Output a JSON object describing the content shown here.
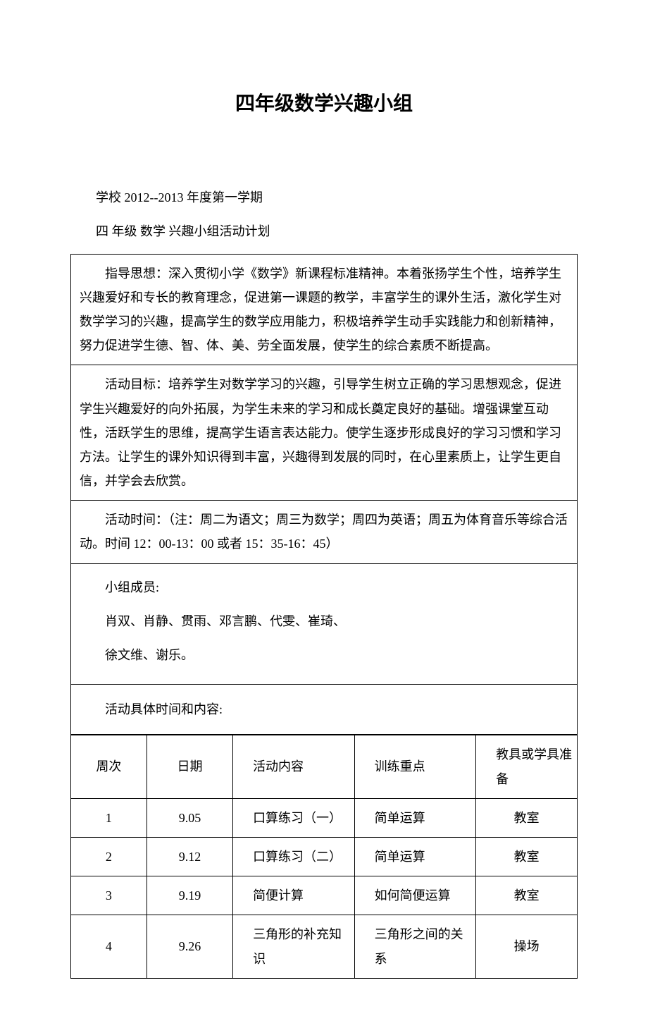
{
  "title": "四年级数学兴趣小组",
  "intro1": "学校 2012--2013 年度第一学期",
  "intro2": "四 年级 数学 兴趣小组活动计划",
  "box1": "指导思想：深入贯彻小学《数学》新课程标准精神。本着张扬学生个性，培养学生兴趣爱好和专长的教育理念，促进第一课题的教学，丰富学生的课外生活，激化学生对数学学习的兴趣，提高学生的数学应用能力，积极培养学生动手实践能力和创新精神，努力促进学生德、智、体、美、劳全面发展，使学生的综合素质不断提高。",
  "box2": "活动目标：培养学生对数学学习的兴趣，引导学生树立正确的学习思想观念，促进学生兴趣爱好的向外拓展，为学生未来的学习和成长奠定良好的基础。增强课堂互动性，活跃学生的思维，提高学生语言表达能力。使学生逐步形成良好的学习习惯和学习方法。让学生的课外知识得到丰富，兴趣得到发展的同时，在心里素质上，让学生更自信，并学会去欣赏。",
  "box3": "活动时间：（注：周二为语文；周三为数学；周四为英语；周五为体育音乐等综合活动。时间 12：00-13：00 或者 15：35-16：45）",
  "members_label": "小组成员:",
  "members_line1": "肖双、肖静、贯雨、邓言鹏、代雯、崔琦、",
  "members_line2": "徐文维、谢乐。",
  "schedule_title": "活动具体时间和内容:",
  "columns": {
    "week": "周次",
    "date": "日期",
    "activity": "活动内容",
    "focus": "训练重点",
    "prep": "教具或学具准备"
  },
  "rows": [
    {
      "week": "1",
      "date": "9.05",
      "activity": "口算练习（一）",
      "focus": "简单运算",
      "prep": "教室"
    },
    {
      "week": "2",
      "date": "9.12",
      "activity": "口算练习（二）",
      "focus": "简单运算",
      "prep": "教室"
    },
    {
      "week": "3",
      "date": "9.19",
      "activity": "简便计算",
      "focus": "如何简便运算",
      "prep": "教室"
    },
    {
      "week": "4",
      "date": "9.26",
      "activity": "三角形的补充知识",
      "focus": "三角形之间的关系",
      "prep": "操场"
    }
  ],
  "col_widths": [
    "15%",
    "17%",
    "24%",
    "24%",
    "20%"
  ],
  "watermark": ""
}
